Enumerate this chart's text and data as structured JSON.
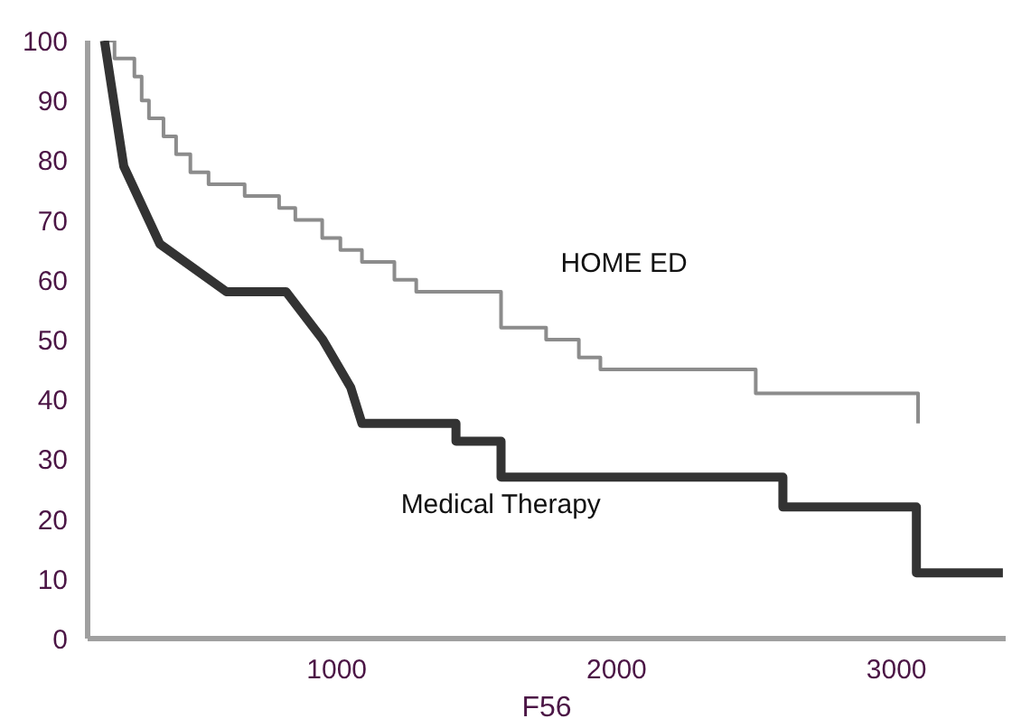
{
  "chart_data": {
    "type": "line",
    "xlabel": "F56",
    "xlim": [
      110,
      3390
    ],
    "ylim": [
      0,
      100
    ],
    "xticks": [
      1000,
      2000,
      3000
    ],
    "yticks": [
      0,
      10,
      20,
      30,
      40,
      50,
      60,
      70,
      80,
      90,
      100
    ],
    "grid": false,
    "marker": "none",
    "series": [
      {
        "name": "HOME ED",
        "type": "step",
        "color": "#8c8c8c",
        "x": [
          170,
          206,
          277,
          303,
          329,
          381,
          426,
          477,
          542,
          671,
          794,
          852,
          948,
          1013,
          1090,
          1206,
          1284,
          1587,
          1748,
          1865,
          1942,
          2497,
          3077
        ],
        "values": [
          100,
          97,
          94,
          90,
          87,
          84,
          81,
          78,
          76,
          74,
          72,
          70,
          67,
          65,
          63,
          60,
          58,
          52,
          50,
          47,
          45,
          41,
          36
        ]
      },
      {
        "name": "Medical Therapy",
        "color": "#333333",
        "x": [
          170,
          239,
          368,
          606,
          819,
          950,
          1050,
          1090,
          1426,
          1426,
          1587,
          1587,
          2594,
          2594,
          3071,
          3071,
          3380
        ],
        "values": [
          100,
          79,
          66,
          58,
          58,
          50,
          42,
          36,
          36,
          33,
          33,
          27,
          27,
          22,
          22,
          11,
          11
        ]
      }
    ]
  }
}
